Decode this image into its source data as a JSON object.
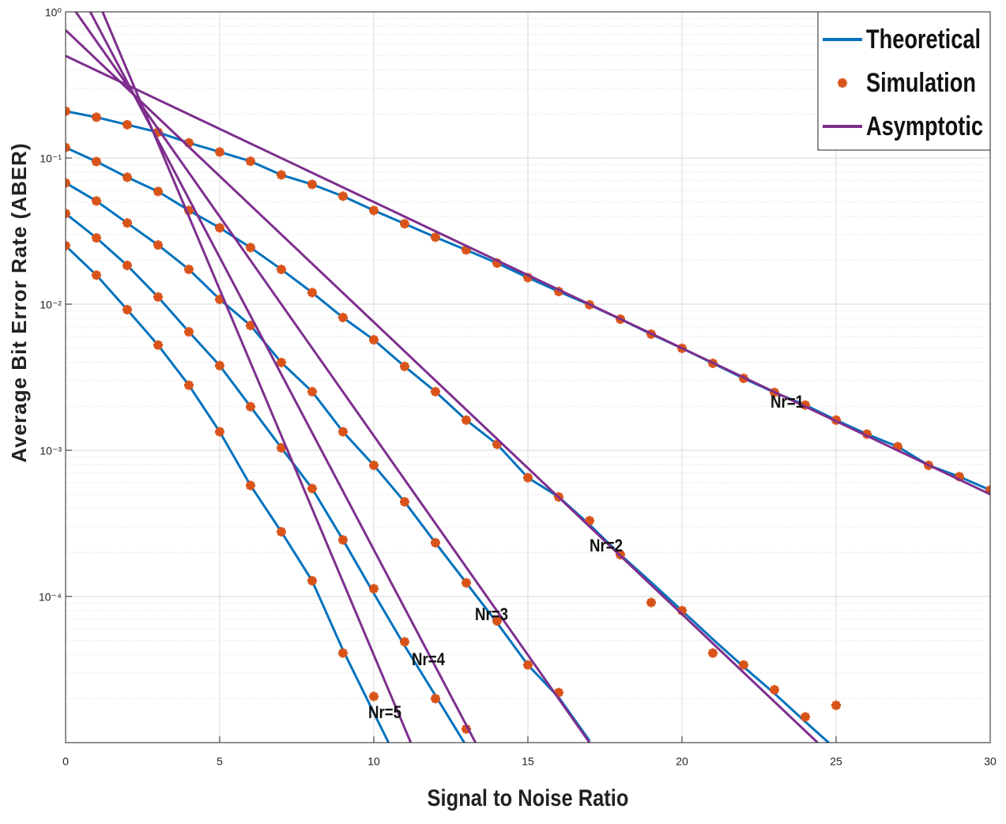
{
  "chart_data": {
    "type": "line",
    "xlabel": "Signal to Noise Ratio",
    "ylabel": "Average Bit Error Rate (ABER)",
    "xlim": [
      0,
      30
    ],
    "ylim": [
      1e-05,
      1
    ],
    "log_y": true,
    "grid": true,
    "legend": "upper right",
    "xticks": [
      0,
      5,
      10,
      15,
      20,
      25,
      30
    ],
    "yticks": [
      {
        "value": 1,
        "label": "10⁰"
      },
      {
        "value": 0.1,
        "label": "10⁻¹"
      },
      {
        "value": 0.01,
        "label": "10⁻²"
      },
      {
        "value": 0.001,
        "label": "10⁻³"
      },
      {
        "value": 0.0001,
        "label": "10⁻⁴"
      }
    ],
    "series": [
      {
        "name": "Theoretical",
        "color": "#0072bd",
        "style": "line",
        "curves": [
          {
            "label": "Nr=1",
            "x": [
              0,
              1,
              2,
              3,
              4,
              5,
              6,
              7,
              8,
              9,
              10,
              11,
              12,
              13,
              14,
              15,
              16,
              17,
              18,
              19,
              20,
              21,
              22,
              23,
              24,
              25,
              26,
              27,
              28,
              29,
              30
            ],
            "values": [
              0.209,
              0.19,
              0.169,
              0.15,
              0.127,
              0.11,
              0.095,
              0.0766,
              0.066,
              0.0548,
              0.0438,
              0.0355,
              0.0287,
              0.0235,
              0.0191,
              0.0152,
              0.0122,
              0.0099,
              0.0079,
              0.00624,
              0.00499,
              0.00394,
              0.00311,
              0.00249,
              0.00204,
              0.00161,
              0.00129,
              0.00106,
              0.00079,
              0.00066,
              0.000534
            ]
          },
          {
            "label": "Nr=2",
            "x": [
              0,
              1,
              2,
              3,
              4,
              5,
              6,
              7,
              8,
              9,
              10,
              11,
              12,
              13,
              14,
              15,
              16,
              17,
              18,
              19,
              20,
              21,
              22,
              23,
              24,
              25
            ],
            "values": [
              0.118,
              0.0946,
              0.0738,
              0.059,
              0.0438,
              0.0333,
              0.0244,
              0.0173,
              0.012,
              0.0081,
              0.0057,
              0.00375,
              0.00252,
              0.00161,
              0.0011,
              0.00065,
              0.00048,
              0.00031,
              0.000193,
              0.000125,
              8e-05,
              5.1e-05,
              3.3e-05,
              2.17e-05,
              1.39e-05,
              9e-06
            ]
          },
          {
            "label": "Nr=3",
            "x": [
              0,
              1,
              2,
              3,
              4,
              5,
              6,
              7,
              8,
              9,
              10,
              11,
              12,
              13,
              14,
              15,
              16,
              17
            ],
            "values": [
              0.0676,
              0.0508,
              0.0359,
              0.0254,
              0.0173,
              0.0108,
              0.00715,
              0.00399,
              0.00252,
              0.00134,
              0.00079,
              0.000444,
              0.000233,
              0.000124,
              6.6e-05,
              3.4e-05,
              2.04e-05,
              1.03e-05
            ]
          },
          {
            "label": "Nr=4",
            "x": [
              0,
              1,
              2,
              3,
              4,
              5,
              6,
              7,
              8,
              9,
              10,
              11,
              12,
              13
            ],
            "values": [
              0.0417,
              0.0284,
              0.0184,
              0.0112,
              0.00647,
              0.0038,
              0.00199,
              0.00104,
              0.000548,
              0.000244,
              0.000105,
              4.6e-05,
              2.1e-05,
              9.5e-06
            ]
          },
          {
            "label": "Nr=5",
            "x": [
              0,
              1,
              2,
              3,
              4,
              5,
              6,
              7,
              8,
              9,
              10,
              11
            ],
            "values": [
              0.0251,
              0.0158,
              0.00917,
              0.00525,
              0.00279,
              0.00134,
              0.000575,
              0.000277,
              0.000128,
              4.3e-05,
              1.6e-05,
              6e-06
            ]
          }
        ]
      },
      {
        "name": "Simulation",
        "color": "#d95319",
        "style": "marker",
        "curves": [
          {
            "x": [
              0,
              1,
              2,
              3,
              4,
              5,
              6,
              7,
              8,
              9,
              10,
              11,
              12,
              13,
              14,
              15,
              16,
              17,
              18,
              19,
              20,
              21,
              22,
              23,
              24,
              25,
              26,
              27,
              28,
              29,
              30
            ],
            "values": [
              0.209,
              0.19,
              0.169,
              0.15,
              0.127,
              0.11,
              0.095,
              0.0766,
              0.066,
              0.0548,
              0.0438,
              0.0355,
              0.0287,
              0.0235,
              0.0191,
              0.0152,
              0.0122,
              0.0099,
              0.0079,
              0.00624,
              0.00499,
              0.00394,
              0.00311,
              0.00249,
              0.00204,
              0.00161,
              0.00129,
              0.00106,
              0.00079,
              0.00066,
              0.000534
            ]
          },
          {
            "x": [
              0,
              1,
              2,
              3,
              4,
              5,
              6,
              7,
              8,
              9,
              10,
              11,
              12,
              13,
              14,
              15,
              16,
              17,
              18,
              19,
              20,
              21,
              22,
              23,
              24,
              25
            ],
            "values": [
              0.118,
              0.0946,
              0.0738,
              0.059,
              0.0438,
              0.0333,
              0.0244,
              0.0173,
              0.012,
              0.0081,
              0.0057,
              0.00375,
              0.00252,
              0.00161,
              0.0011,
              0.00065,
              0.00048,
              0.00033,
              0.000193,
              9.1e-05,
              8e-05,
              4.1e-05,
              3.4e-05,
              2.3e-05,
              1.5e-05,
              1.8e-05
            ]
          },
          {
            "x": [
              0,
              1,
              2,
              3,
              4,
              5,
              6,
              7,
              8,
              9,
              10,
              11,
              12,
              13,
              14,
              15,
              16
            ],
            "values": [
              0.0676,
              0.0508,
              0.0359,
              0.0254,
              0.0173,
              0.0108,
              0.00715,
              0.00399,
              0.00252,
              0.00134,
              0.00079,
              0.000444,
              0.000233,
              0.000124,
              6.8e-05,
              3.4e-05,
              2.2e-05
            ]
          },
          {
            "x": [
              0,
              1,
              2,
              3,
              4,
              5,
              6,
              7,
              8,
              9,
              10,
              11,
              12,
              13
            ],
            "values": [
              0.0417,
              0.0284,
              0.0184,
              0.0112,
              0.00647,
              0.0038,
              0.00199,
              0.00104,
              0.000548,
              0.000244,
              0.000113,
              4.9e-05,
              2e-05,
              1.24e-05
            ]
          },
          {
            "x": [
              0,
              1,
              2,
              3,
              4,
              5,
              6,
              7,
              8,
              9,
              10
            ],
            "values": [
              0.0251,
              0.0158,
              0.00917,
              0.00525,
              0.00279,
              0.00134,
              0.000575,
              0.000277,
              0.000128,
              4.1e-05,
              2.07e-05
            ]
          }
        ]
      },
      {
        "name": "Asymptotic",
        "color": "#7e2f8e",
        "style": "line",
        "curves": [
          {
            "x": [
              0,
              30
            ],
            "values": [
              0.5,
              0.0005
            ]
          },
          {
            "x": [
              0,
              24.4
            ],
            "values": [
              0.75,
              1e-05
            ]
          },
          {
            "x": [
              0.33,
              17
            ],
            "values": [
              1,
              1e-05
            ]
          },
          {
            "x": [
              0.8,
              13.3
            ],
            "values": [
              1,
              1e-05
            ]
          },
          {
            "x": [
              1.2,
              11.2
            ],
            "values": [
              1,
              1e-05
            ]
          }
        ]
      }
    ]
  }
}
